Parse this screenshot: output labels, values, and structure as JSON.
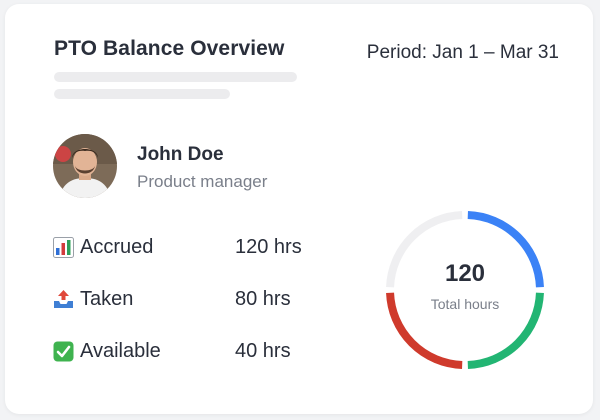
{
  "card": {
    "title": "PTO Balance Overview",
    "period": "Period: Jan 1 – Mar 31"
  },
  "employee": {
    "name": "John Doe",
    "role": "Product manager"
  },
  "stats": [
    {
      "icon": "bar-chart-icon",
      "label": "Accrued",
      "value": "120 hrs"
    },
    {
      "icon": "outbox-tray-icon",
      "label": "Taken",
      "value": "80 hrs"
    },
    {
      "icon": "check-mark-button-icon",
      "label": "Available",
      "value": "40 hrs"
    }
  ],
  "donut": {
    "total": "120",
    "caption": "Total hours",
    "segments": [
      {
        "color": "#3b82f6",
        "fraction": 0.25
      },
      {
        "color": "#22b573",
        "fraction": 0.25
      },
      {
        "color": "#cf3a2c",
        "fraction": 0.25
      },
      {
        "color": "#efeff1",
        "fraction": 0.25
      }
    ]
  }
}
